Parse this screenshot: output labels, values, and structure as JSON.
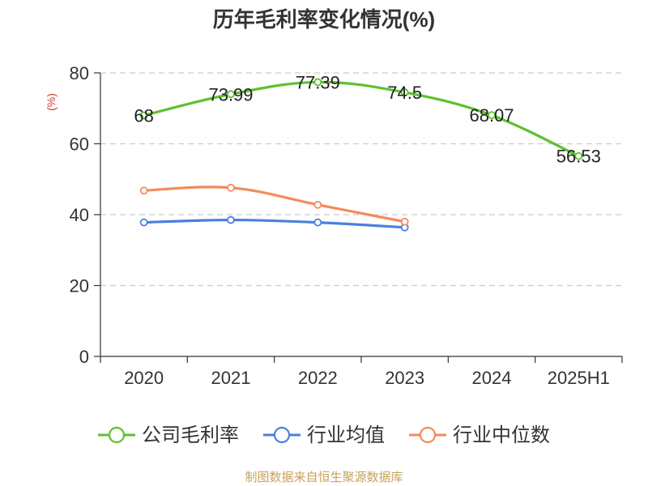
{
  "chart_data": {
    "type": "line",
    "title": "历年毛利率变化情况(%)",
    "ylabel": "(%)",
    "categories": [
      "2020",
      "2021",
      "2022",
      "2023",
      "2024",
      "2025H1"
    ],
    "ylim": [
      0,
      80
    ],
    "yticks": [
      0,
      20,
      40,
      60,
      80
    ],
    "grid": true,
    "legend_position": "bottom",
    "series": [
      {
        "name": "公司毛利率",
        "color": "#5ec12f",
        "values": [
          68,
          73.99,
          77.39,
          74.5,
          68.07,
          56.53
        ],
        "labels": [
          "68",
          "73.99",
          "77.39",
          "74.5",
          "68.07",
          "56.53"
        ]
      },
      {
        "name": "行业均值",
        "color": "#4a7fe0",
        "values": [
          37.8,
          38.5,
          37.8,
          36.4,
          null,
          null
        ]
      },
      {
        "name": "行业中位数",
        "color": "#f28c5c",
        "values": [
          46.8,
          47.6,
          42.8,
          38.0,
          null,
          null
        ]
      }
    ]
  },
  "source": "制图数据来自恒生聚源数据库",
  "colors": {
    "unit_label": "#d9362b",
    "source": "#c9a15a",
    "axis": "#333333",
    "grid": "#cccccc"
  }
}
